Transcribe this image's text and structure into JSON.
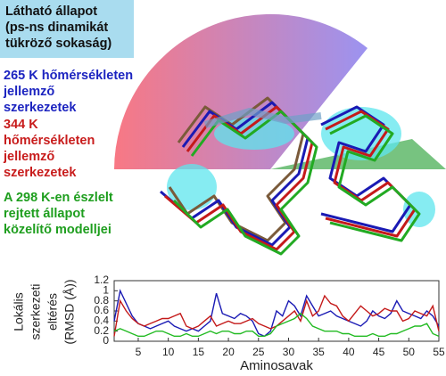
{
  "panel": {
    "box": {
      "lines": [
        "Látható állapot",
        "(ps-ns dinamikát",
        "tükröző sokaság)"
      ],
      "color": "#a9dcef"
    },
    "labels": [
      {
        "lines": [
          "265 K hőmérsékleten",
          "jellemző",
          "szerkezetek"
        ],
        "color": "#1c24c0"
      },
      {
        "lines": [
          "344 K",
          "hőmérsékleten",
          "jellemző",
          "szerkezetek"
        ],
        "color": "#c81c1c"
      },
      {
        "lines": [
          "A 298 K-en észlelt",
          "rejtett állapot",
          "közelítő modelljei"
        ],
        "color": "#1e9e1e"
      }
    ]
  },
  "chart_data": {
    "type": "line",
    "ylabel": [
      "Lokális",
      "szerkezeti",
      "eltérés",
      "(RMSD (Å))"
    ],
    "xlabel": "Aminosavak",
    "x": [
      1,
      2,
      3,
      4,
      5,
      6,
      7,
      8,
      9,
      10,
      11,
      12,
      13,
      14,
      15,
      16,
      17,
      18,
      19,
      20,
      21,
      22,
      23,
      24,
      25,
      26,
      27,
      28,
      29,
      30,
      31,
      32,
      33,
      34,
      35,
      36,
      37,
      38,
      39,
      40,
      41,
      42,
      43,
      44,
      45,
      46,
      47,
      48,
      49,
      50,
      51,
      52,
      53,
      54,
      55
    ],
    "series": [
      {
        "color": "#1a1ab4",
        "values": [
          0.4,
          1.0,
          0.75,
          0.5,
          0.35,
          0.3,
          0.25,
          0.3,
          0.35,
          0.4,
          0.3,
          0.25,
          0.2,
          0.25,
          0.2,
          0.3,
          0.4,
          0.95,
          0.55,
          0.5,
          0.45,
          0.55,
          0.5,
          0.4,
          0.15,
          0.1,
          0.2,
          0.6,
          0.5,
          0.8,
          0.7,
          0.5,
          0.9,
          0.7,
          0.5,
          0.55,
          0.6,
          0.5,
          0.45,
          0.4,
          0.35,
          0.3,
          0.4,
          0.6,
          0.5,
          0.45,
          0.55,
          0.8,
          0.6,
          0.55,
          0.5,
          0.45,
          0.6,
          0.5,
          0.3
        ]
      },
      {
        "color": "#c41a1a",
        "values": [
          0.1,
          0.8,
          0.6,
          0.45,
          0.35,
          0.3,
          0.35,
          0.4,
          0.45,
          0.45,
          0.5,
          0.55,
          0.3,
          0.25,
          0.3,
          0.4,
          0.5,
          0.3,
          0.35,
          0.4,
          0.35,
          0.35,
          0.4,
          0.45,
          0.35,
          0.3,
          0.25,
          0.3,
          0.4,
          0.5,
          0.6,
          0.4,
          0.8,
          0.5,
          0.6,
          0.9,
          0.75,
          0.7,
          0.5,
          0.4,
          0.55,
          0.7,
          0.6,
          0.5,
          0.55,
          0.65,
          0.6,
          0.6,
          0.4,
          0.45,
          0.6,
          0.55,
          0.5,
          0.7,
          0.2
        ]
      },
      {
        "color": "#22bb22",
        "values": [
          0.2,
          0.25,
          0.2,
          0.15,
          0.1,
          0.1,
          0.15,
          0.2,
          0.2,
          0.15,
          0.1,
          0.1,
          0.15,
          0.1,
          0.1,
          0.15,
          0.2,
          0.15,
          0.2,
          0.2,
          0.15,
          0.15,
          0.2,
          0.2,
          0.1,
          0.1,
          0.15,
          0.3,
          0.35,
          0.4,
          0.45,
          0.55,
          0.45,
          0.3,
          0.25,
          0.2,
          0.2,
          0.2,
          0.15,
          0.15,
          0.1,
          0.1,
          0.1,
          0.15,
          0.1,
          0.1,
          0.15,
          0.15,
          0.2,
          0.25,
          0.3,
          0.3,
          0.35,
          0.15,
          0.1
        ]
      }
    ],
    "xlim": [
      1,
      55
    ],
    "xticks": [
      5,
      10,
      15,
      20,
      25,
      30,
      35,
      40,
      45,
      50,
      55
    ],
    "ylim": [
      0,
      1.2
    ],
    "yticks": [
      0,
      0.2,
      0.4,
      0.6,
      0.8,
      1,
      1.2
    ]
  }
}
